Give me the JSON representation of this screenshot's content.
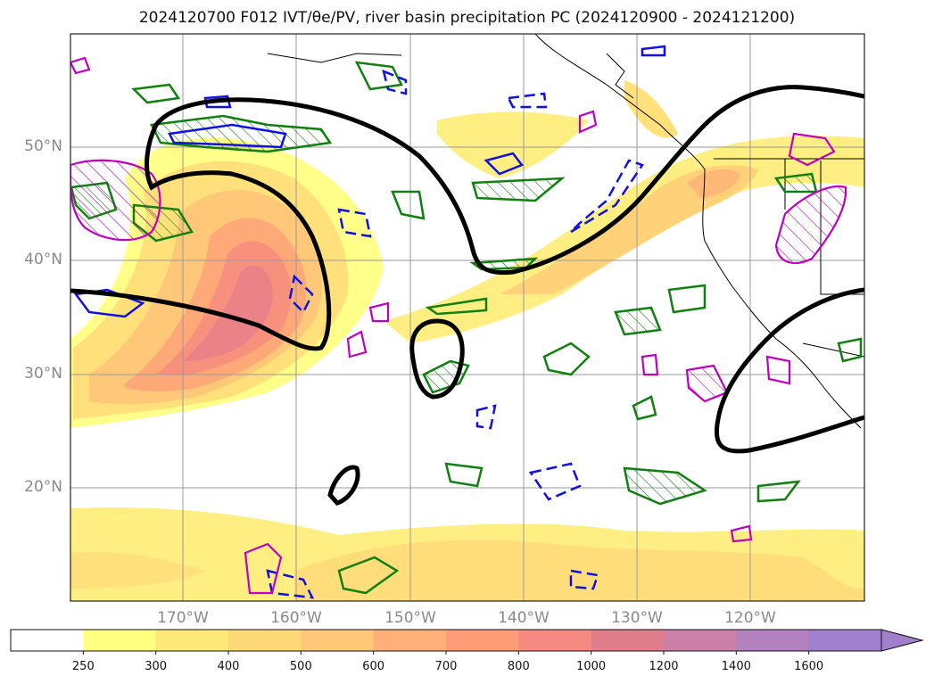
{
  "title": "2024120700 F012 IVT/θe/PV, river basin precipitation PC (2024120900 - 2024121200)",
  "lat_labels": [
    "50°N",
    "40°N",
    "30°N",
    "20°N"
  ],
  "lon_labels": [
    "170°W",
    "160°W",
    "150°W",
    "140°W",
    "130°W",
    "120°W"
  ],
  "colorbar": {
    "ticks": [
      "250",
      "300",
      "400",
      "500",
      "600",
      "700",
      "800",
      "1000",
      "1200",
      "1400",
      "1600"
    ],
    "colors": [
      "#ffffff",
      "#ffff80",
      "#ffe878",
      "#ffd878",
      "#ffc878",
      "#ffb078",
      "#ff9c78",
      "#f58a80",
      "#e07e8c",
      "#cc80a8",
      "#b380c0",
      "#a080cc"
    ]
  }
}
